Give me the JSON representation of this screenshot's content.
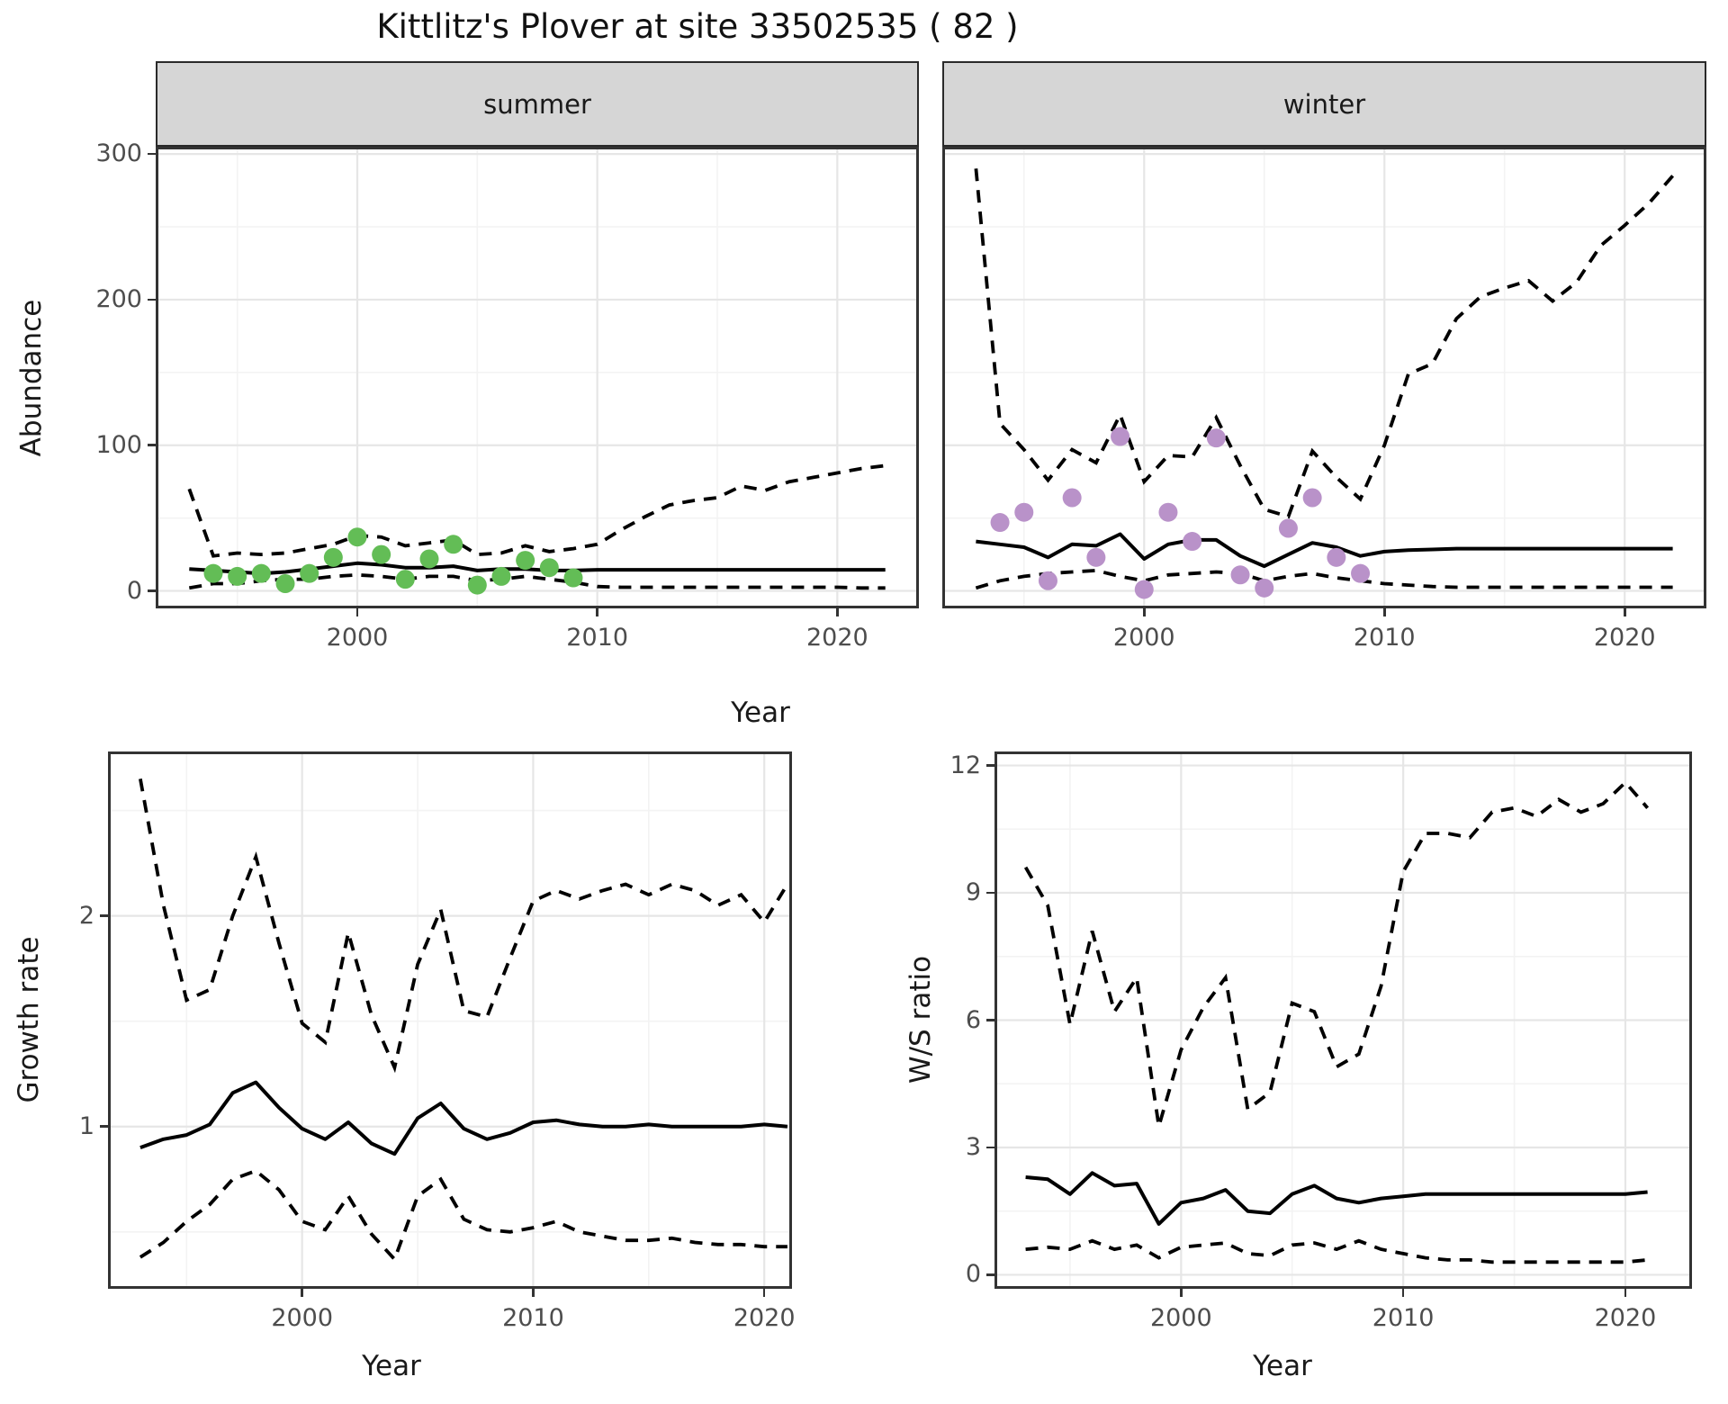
{
  "title": "Kittlitz's Plover at site 33502535 ( 82 )",
  "axes": {
    "abundance": "Abundance",
    "year_top": "Year",
    "growth": "Growth rate",
    "year_growth": "Year",
    "ws": "W/S ratio",
    "year_ws": "Year"
  },
  "colors": {
    "summer_point": "#63BD56",
    "winter_point": "#B992C9",
    "line": "#000000",
    "strip_bg": "#D6D6D6",
    "panel_border": "#333333",
    "grid_major": "#E6E6E6",
    "grid_minor": "#F3F3F3",
    "axis_text": "#4D4D4D"
  },
  "chart_data": [
    {
      "id": "abundance-summer",
      "type": "line+scatter",
      "facet_label": "summer",
      "xlabel": "Year",
      "ylabel": "Abundance",
      "x_axis": {
        "ticks": [
          2000,
          2010,
          2020
        ],
        "minor": [
          1995,
          2005,
          2015
        ],
        "range": [
          1991.6,
          2023.4
        ]
      },
      "y_axis": {
        "ticks": [
          0,
          100,
          200,
          300
        ],
        "minor": [
          50,
          150,
          250
        ],
        "range": [
          -12,
          305
        ]
      },
      "lines": {
        "x": [
          1993,
          1994,
          1995,
          1996,
          1997,
          1998,
          1999,
          2000,
          2001,
          2002,
          2003,
          2004,
          2005,
          2006,
          2007,
          2008,
          2009,
          2010,
          2011,
          2012,
          2013,
          2014,
          2015,
          2016,
          2017,
          2018,
          2019,
          2020,
          2021,
          2022
        ],
        "median": [
          15,
          14,
          13,
          12,
          13,
          15,
          17,
          19,
          18,
          16,
          16,
          17,
          14,
          15,
          15,
          14,
          14,
          14.5,
          14.5,
          14.5,
          14.5,
          14.5,
          14.5,
          14.5,
          14.5,
          14.5,
          14.5,
          14.5,
          14.5,
          14.5
        ],
        "upper_ci": [
          70,
          24,
          26,
          25,
          26,
          29,
          32,
          38,
          37,
          31,
          33,
          35,
          25,
          26,
          31,
          27,
          29,
          32,
          42,
          51,
          59,
          62,
          64,
          72,
          69,
          75,
          78,
          81,
          84,
          86
        ],
        "lower_ci": [
          2,
          5,
          5,
          7,
          8,
          8,
          10,
          11,
          10,
          8,
          10,
          10,
          7,
          8,
          10,
          8,
          6,
          3,
          2.5,
          2.5,
          2.5,
          2.5,
          2.5,
          2.5,
          2.5,
          2.5,
          2.5,
          2.5,
          2,
          2
        ]
      },
      "points": {
        "x": [
          1994,
          1995,
          1996,
          1997,
          1998,
          1999,
          2000,
          2001,
          2002,
          2003,
          2004,
          2005,
          2006,
          2007,
          2008,
          2009
        ],
        "y": [
          12,
          10,
          12,
          5,
          12,
          23,
          37,
          25,
          8,
          22,
          32,
          4,
          10,
          21,
          16,
          9
        ],
        "color": "#63BD56"
      }
    },
    {
      "id": "abundance-winter",
      "type": "line+scatter",
      "facet_label": "winter",
      "xlabel": "Year",
      "ylabel": "Abundance",
      "x_axis": {
        "ticks": [
          2000,
          2010,
          2020
        ],
        "minor": [
          1995,
          2005,
          2015
        ],
        "range": [
          1991.6,
          2023.4
        ]
      },
      "y_axis": {
        "ticks": [
          0,
          100,
          200,
          300
        ],
        "minor": [
          50,
          150,
          250
        ],
        "range": [
          -12,
          305
        ]
      },
      "lines": {
        "x": [
          1993,
          1994,
          1995,
          1996,
          1997,
          1998,
          1999,
          2000,
          2001,
          2002,
          2003,
          2004,
          2005,
          2006,
          2007,
          2008,
          2009,
          2010,
          2011,
          2012,
          2013,
          2014,
          2015,
          2016,
          2017,
          2018,
          2019,
          2020,
          2021,
          2022
        ],
        "median": [
          34,
          32,
          30,
          23,
          32,
          31,
          39,
          22,
          32,
          35,
          35,
          24,
          17,
          25,
          33,
          30,
          24,
          27,
          28,
          28.5,
          29,
          29,
          29,
          29,
          29,
          29,
          29,
          29,
          29,
          29
        ],
        "upper_ci": [
          290,
          115,
          97,
          76,
          97,
          88,
          121,
          75,
          93,
          92,
          119,
          86,
          56,
          51,
          96,
          78,
          63,
          100,
          149,
          156,
          187,
          202,
          208,
          213,
          199,
          212,
          237,
          251,
          266,
          285
        ],
        "lower_ci": [
          2,
          7,
          10,
          12,
          13,
          14,
          10,
          7,
          11,
          12,
          13,
          12,
          7,
          10,
          12,
          9,
          7,
          5,
          4,
          3,
          2.5,
          2.5,
          2.5,
          2.5,
          2.5,
          2.5,
          2.5,
          2.5,
          2.5,
          2.5
        ]
      },
      "points": {
        "x": [
          1994,
          1995,
          1996,
          1997,
          1998,
          1999,
          2000,
          2001,
          2002,
          2003,
          2004,
          2005,
          2006,
          2007,
          2008,
          2009
        ],
        "y": [
          47,
          54,
          7,
          64,
          23,
          106,
          1,
          54,
          34,
          105,
          11,
          2,
          43,
          64,
          23,
          12
        ],
        "color": "#B992C9"
      }
    },
    {
      "id": "growth-rate",
      "type": "line",
      "facet_label": "",
      "xlabel": "Year",
      "ylabel": "Growth rate",
      "x_axis": {
        "ticks": [
          2000,
          2010,
          2020
        ],
        "minor": [
          1995,
          2005,
          2015
        ],
        "range": [
          1991.6,
          2021.2
        ]
      },
      "y_axis": {
        "ticks": [
          1,
          2
        ],
        "minor": [
          0.5,
          1.5,
          2.5
        ],
        "range": [
          0.23,
          2.78
        ]
      },
      "lines": {
        "x": [
          1993,
          1994,
          1995,
          1996,
          1997,
          1998,
          1999,
          2000,
          2001,
          2002,
          2003,
          2004,
          2005,
          2006,
          2007,
          2008,
          2009,
          2010,
          2011,
          2012,
          2013,
          2014,
          2015,
          2016,
          2017,
          2018,
          2019,
          2020,
          2021
        ],
        "median": [
          0.9,
          0.94,
          0.96,
          1.01,
          1.16,
          1.21,
          1.09,
          0.99,
          0.94,
          1.02,
          0.92,
          0.87,
          1.04,
          1.11,
          0.99,
          0.94,
          0.97,
          1.02,
          1.03,
          1.01,
          1.0,
          1.0,
          1.01,
          1.0,
          1.0,
          1.0,
          1.0,
          1.01,
          1.0
        ],
        "upper_ci": [
          2.65,
          2.05,
          1.6,
          1.65,
          2.0,
          2.28,
          1.87,
          1.49,
          1.4,
          1.92,
          1.53,
          1.28,
          1.77,
          2.03,
          1.55,
          1.52,
          1.8,
          2.07,
          2.12,
          2.08,
          2.12,
          2.15,
          2.1,
          2.15,
          2.12,
          2.05,
          2.1,
          1.97,
          2.15
        ],
        "lower_ci": [
          0.38,
          0.45,
          0.55,
          0.63,
          0.75,
          0.79,
          0.7,
          0.55,
          0.51,
          0.67,
          0.49,
          0.37,
          0.67,
          0.75,
          0.56,
          0.51,
          0.5,
          0.52,
          0.55,
          0.5,
          0.48,
          0.46,
          0.46,
          0.47,
          0.45,
          0.44,
          0.44,
          0.43,
          0.43
        ]
      },
      "points": null
    },
    {
      "id": "ws-ratio",
      "type": "line",
      "facet_label": "",
      "xlabel": "Year",
      "ylabel": "W/S ratio",
      "x_axis": {
        "ticks": [
          2000,
          2010,
          2020
        ],
        "minor": [
          1995,
          2005,
          2015
        ],
        "range": [
          1991.6,
          2023.0
        ]
      },
      "y_axis": {
        "ticks": [
          0,
          3,
          6,
          9,
          12
        ],
        "minor": [
          1.5,
          4.5,
          7.5,
          10.5
        ],
        "range": [
          -0.33,
          12.33
        ]
      },
      "lines": {
        "x": [
          1993,
          1994,
          1995,
          1996,
          1997,
          1998,
          1999,
          2000,
          2001,
          2002,
          2003,
          2004,
          2005,
          2006,
          2007,
          2008,
          2009,
          2010,
          2011,
          2012,
          2013,
          2014,
          2015,
          2016,
          2017,
          2018,
          2019,
          2020,
          2021
        ],
        "median": [
          2.3,
          2.25,
          1.9,
          2.4,
          2.1,
          2.15,
          1.2,
          1.7,
          1.8,
          2.0,
          1.5,
          1.45,
          1.9,
          2.1,
          1.8,
          1.7,
          1.8,
          1.85,
          1.9,
          1.9,
          1.9,
          1.9,
          1.9,
          1.9,
          1.9,
          1.9,
          1.9,
          1.9,
          1.95
        ],
        "upper_ci": [
          9.6,
          8.7,
          5.9,
          8.1,
          6.2,
          7.0,
          3.5,
          5.3,
          6.3,
          7.0,
          3.9,
          4.3,
          6.4,
          6.2,
          4.9,
          5.2,
          6.8,
          9.5,
          10.4,
          10.4,
          10.3,
          10.9,
          11.0,
          10.8,
          11.2,
          10.9,
          11.1,
          11.6,
          11.0
        ],
        "lower_ci": [
          0.6,
          0.65,
          0.6,
          0.8,
          0.6,
          0.7,
          0.4,
          0.65,
          0.7,
          0.75,
          0.5,
          0.45,
          0.7,
          0.75,
          0.6,
          0.8,
          0.6,
          0.5,
          0.4,
          0.35,
          0.35,
          0.3,
          0.3,
          0.3,
          0.3,
          0.3,
          0.3,
          0.3,
          0.35
        ]
      },
      "points": null
    }
  ]
}
